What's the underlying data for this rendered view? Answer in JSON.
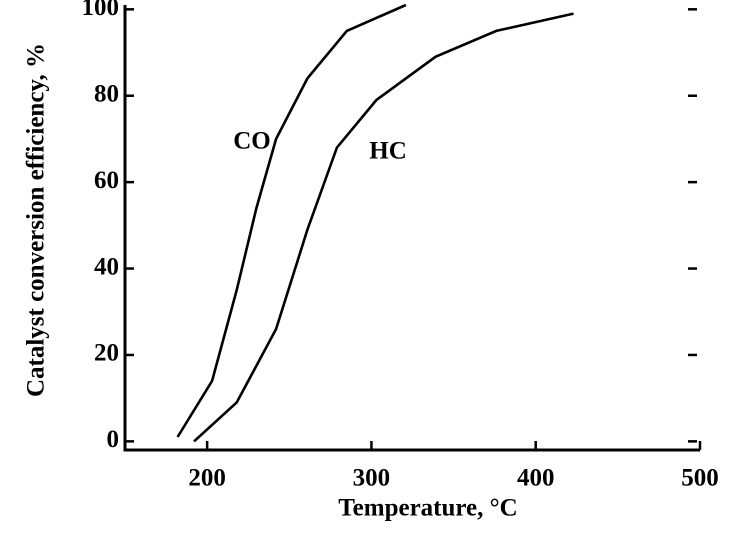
{
  "chart_data": {
    "type": "line",
    "xlabel": "Temperature, °C",
    "ylabel": "Catalyst conversion efficiency, %",
    "xlim": [
      150,
      500
    ],
    "ylim": [
      -2,
      101
    ],
    "xticks": [
      200,
      300,
      400,
      500
    ],
    "yticks": [
      0,
      20,
      40,
      60,
      80,
      100
    ],
    "color": "#000000",
    "grid": false,
    "series": [
      {
        "name": "CO",
        "x": [
          182,
          203,
          218,
          230,
          242,
          261,
          285,
          321
        ],
        "values": [
          1,
          14,
          35,
          54,
          70,
          84,
          95,
          101
        ]
      },
      {
        "name": "HC",
        "x": [
          192,
          218,
          242,
          261,
          279,
          303,
          339,
          376,
          423
        ],
        "values": [
          0,
          9,
          26,
          49,
          68,
          79,
          89,
          95,
          99
        ]
      }
    ]
  }
}
